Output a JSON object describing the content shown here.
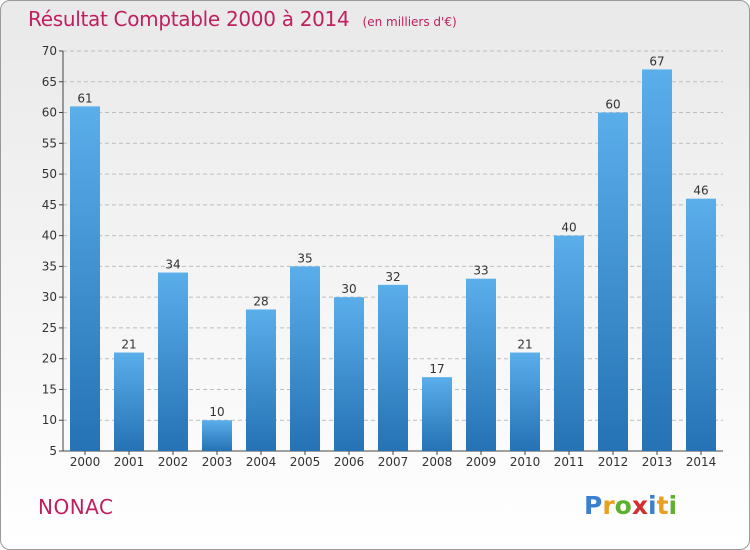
{
  "chart_data": {
    "type": "bar",
    "title": "Résultat Comptable 2000 à 2014",
    "subtitle": "(en milliers d'€)",
    "categories": [
      "2000",
      "2001",
      "2002",
      "2003",
      "2004",
      "2005",
      "2006",
      "2007",
      "2008",
      "2009",
      "2010",
      "2011",
      "2012",
      "2013",
      "2014"
    ],
    "values": [
      61,
      21,
      34,
      10,
      28,
      35,
      30,
      32,
      17,
      33,
      21,
      40,
      60,
      67,
      46
    ],
    "ylim": [
      5,
      70
    ],
    "yticks": [
      5,
      10,
      15,
      20,
      25,
      30,
      35,
      40,
      45,
      50,
      55,
      60,
      65,
      70
    ],
    "grid": true,
    "bar_color": "#3a8fd6"
  },
  "commune": "NONAC",
  "brand": {
    "letters": [
      "P",
      "r",
      "o",
      "x",
      "i",
      "t",
      "i"
    ],
    "colors": [
      "#3a7fd0",
      "#e8a020",
      "#60b030",
      "#d03030",
      "#3a7fd0",
      "#e8a020",
      "#60b030"
    ]
  }
}
